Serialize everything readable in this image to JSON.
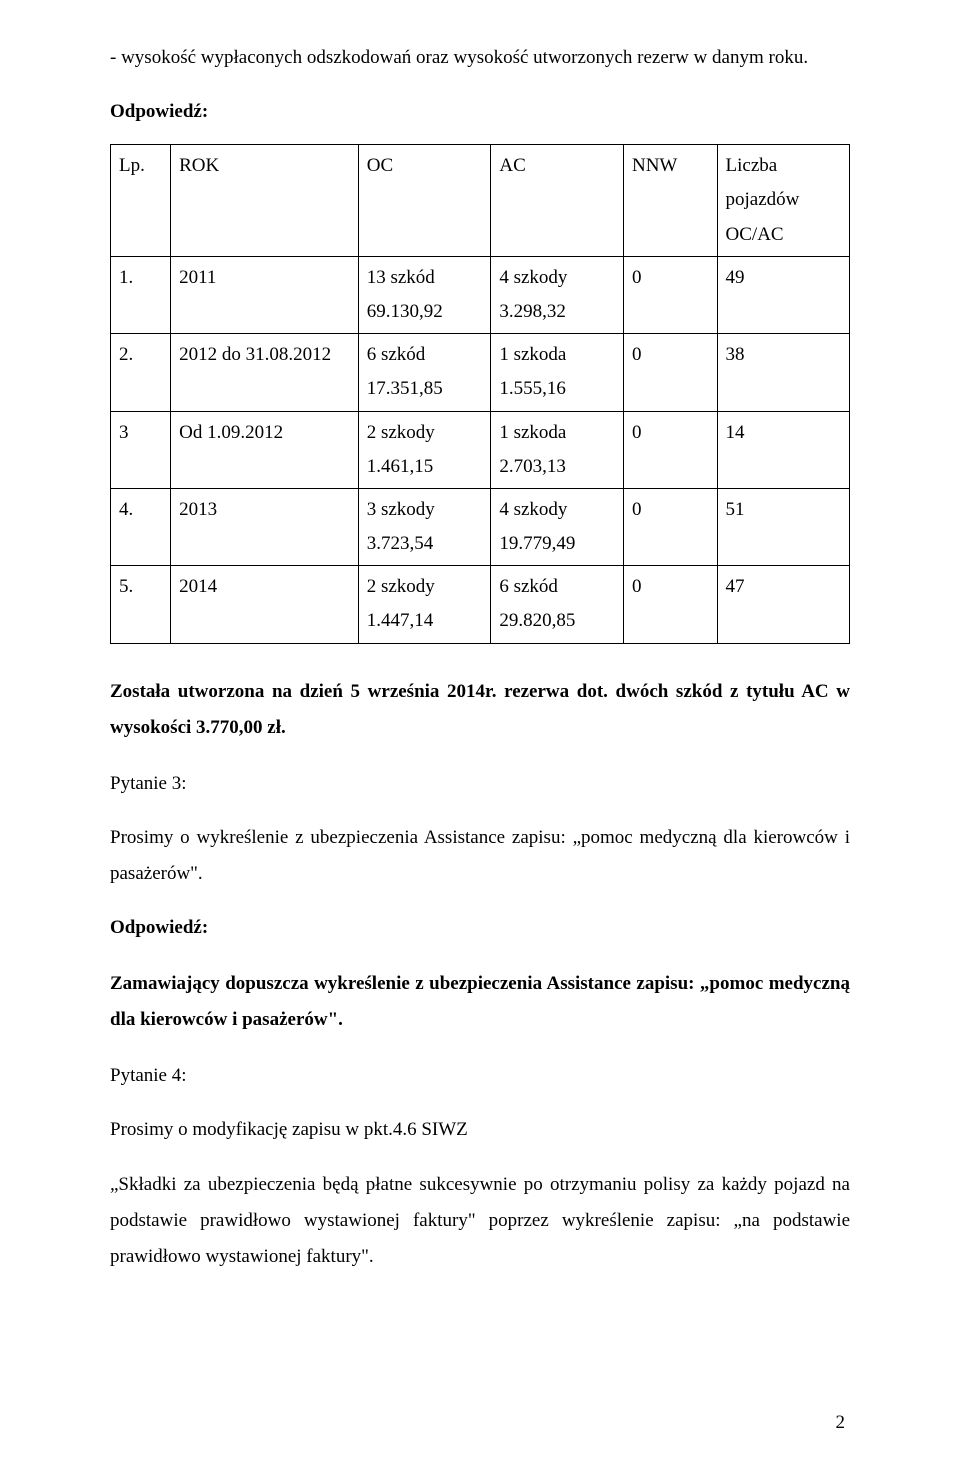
{
  "intro": "- wysokość wypłaconych odszkodowań oraz wysokość utworzonych rezerw w danym roku.",
  "answer_label": "Odpowiedź:",
  "table": {
    "headers": [
      "Lp.",
      "ROK",
      "OC",
      "AC",
      "NNW",
      "Liczba pojazdów OC/AC"
    ],
    "rows": [
      {
        "lp": "1.",
        "rok": "2011",
        "oc_l1": "13 szkód",
        "oc_l2": "69.130,92",
        "ac_l1": "4 szkody",
        "ac_l2": "3.298,32",
        "nnw": "0",
        "liczba": "49"
      },
      {
        "lp": "2.",
        "rok": "2012 do 31.08.2012",
        "oc_l1": "6 szkód",
        "oc_l2": "17.351,85",
        "ac_l1": "1 szkoda",
        "ac_l2": "1.555,16",
        "nnw": "0",
        "liczba": "38"
      },
      {
        "lp": "3",
        "rok": "Od 1.09.2012",
        "oc_l1": "2 szkody",
        "oc_l2": "1.461,15",
        "ac_l1": "1 szkoda",
        "ac_l2": "2.703,13",
        "nnw": "0",
        "liczba": "14"
      },
      {
        "lp": "4.",
        "rok": "2013",
        "oc_l1": "3 szkody",
        "oc_l2": "3.723,54",
        "ac_l1": "4 szkody",
        "ac_l2": "19.779,49",
        "nnw": "0",
        "liczba": "51"
      },
      {
        "lp": "5.",
        "rok": "2014",
        "oc_l1": "2 szkody",
        "oc_l2": "1.447,14",
        "ac_l1": "6 szkód",
        "ac_l2": "29.820,85",
        "nnw": "0",
        "liczba": "47"
      }
    ]
  },
  "reserve_note": "Została utworzona na dzień 5 września 2014r. rezerwa dot. dwóch szkód z tytułu AC w wysokości 3.770,00 zł.",
  "q3_label": "Pytanie 3:",
  "q3_body": "Prosimy o wykreślenie z ubezpieczenia Assistance zapisu: „pomoc medyczną dla kierowców i pasażerów\".",
  "q3_answer": "Zamawiający dopuszcza wykreślenie z ubezpieczenia Assistance zapisu: „pomoc medyczną dla kierowców i pasażerów\".",
  "q4_label": "Pytanie 4:",
  "q4_body": "Prosimy o modyfikację zapisu w pkt.4.6 SIWZ",
  "q4_quoted": "„Składki za ubezpieczenia będą płatne sukcesywnie po otrzymaniu polisy za każdy pojazd na podstawie prawidłowo wystawionej faktury\" poprzez wykreślenie zapisu: „na podstawie prawidłowo wystawionej faktury\".",
  "page_number": "2"
}
